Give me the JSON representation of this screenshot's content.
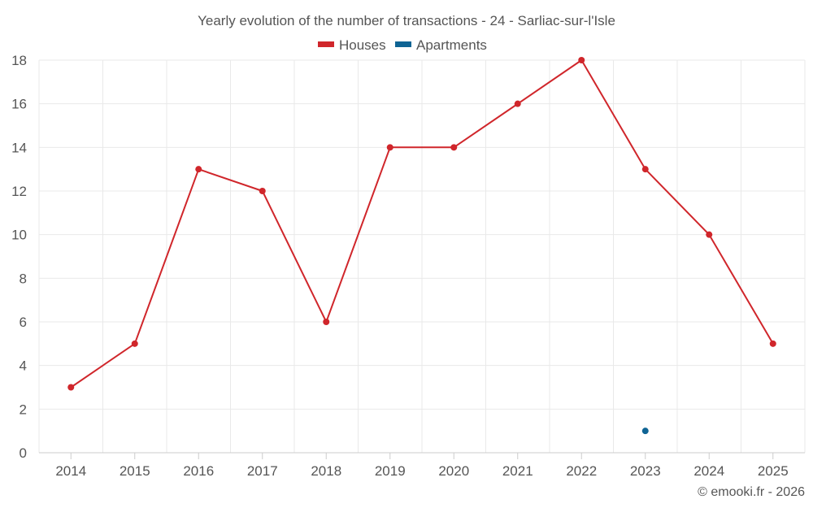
{
  "chart_data": {
    "type": "line",
    "title": "Yearly evolution of the number of transactions - 24 - Sarliac-sur-l'Isle",
    "categories": [
      "2014",
      "2015",
      "2016",
      "2017",
      "2018",
      "2019",
      "2020",
      "2021",
      "2022",
      "2023",
      "2024",
      "2025"
    ],
    "series": [
      {
        "name": "Houses",
        "color": "#d0262b",
        "values": [
          3,
          5,
          13,
          12,
          6,
          14,
          14,
          16,
          18,
          13,
          10,
          5
        ]
      },
      {
        "name": "Apartments",
        "color": "#0f6494",
        "values": [
          null,
          null,
          null,
          null,
          null,
          null,
          null,
          null,
          null,
          1,
          null,
          null
        ]
      }
    ],
    "ylim": [
      0,
      18
    ],
    "yticks": [
      0,
      2,
      4,
      6,
      8,
      10,
      12,
      14,
      16,
      18
    ],
    "grid": true,
    "legend": "top-center"
  },
  "credit": "© emooki.fr - 2026"
}
